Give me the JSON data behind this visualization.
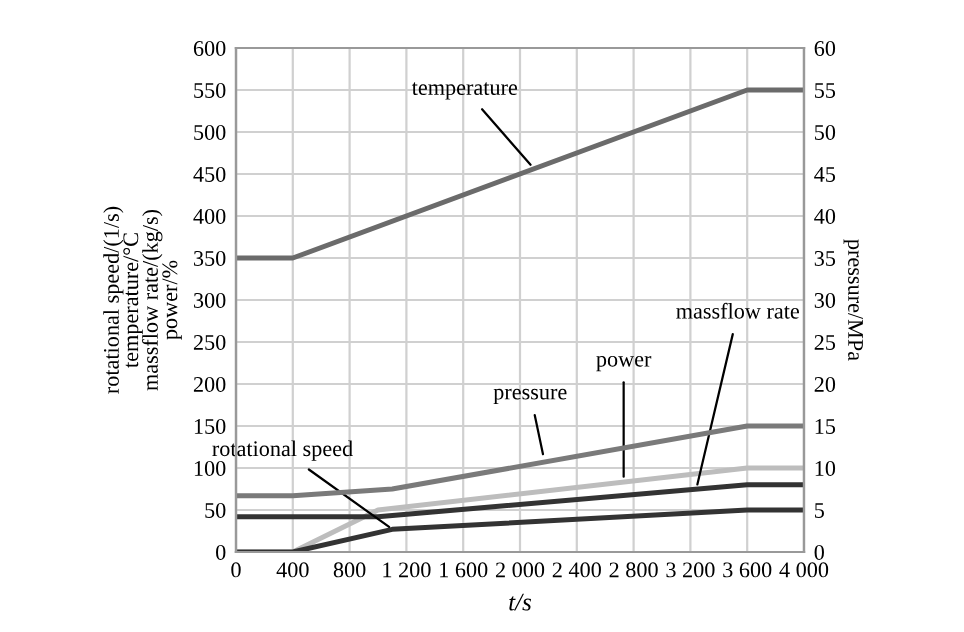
{
  "chart_data": {
    "type": "line",
    "xlabel": "t/s",
    "ylabel": "rotational speed/(1/s)\ntemperature/°C\nmassflow rate/(kg/s)\npower/%",
    "y2label": "pressure/MPa",
    "series": [
      {
        "color": "#6b6b6b",
        "x": [
          0,
          400,
          3600,
          4000
        ],
        "values": [
          350,
          350,
          550,
          550
        ]
      },
      {
        "color": "#7a7a7a",
        "axis": "y2",
        "x": [
          0,
          400,
          1100,
          3600,
          4000
        ],
        "values": [
          6.7,
          6.7,
          7.5,
          15,
          15
        ]
      },
      {
        "color": "#bdbdbd",
        "x": [
          0,
          400,
          1000,
          3600,
          4000
        ],
        "values": [
          0,
          0,
          50,
          100,
          100
        ]
      },
      {
        "color": "#333333",
        "x": [
          0,
          1000,
          3600,
          4000
        ],
        "values": [
          42,
          42,
          80,
          80
        ]
      },
      {
        "color": "#333333",
        "x": [
          0,
          400,
          1100,
          3600,
          4000
        ],
        "values": [
          0,
          0,
          27,
          50,
          50
        ]
      }
    ],
    "annotations": [
      {
        "text": "temperature",
        "x": 2100,
        "y": 456
      },
      {
        "text": "pressure",
        "x": 2170,
        "y": 110
      },
      {
        "text": "power",
        "x": 2730,
        "y": 83
      },
      {
        "text": "massflow rate",
        "x": 3240,
        "y": 74
      },
      {
        "text": "rotational speed",
        "x": 1110,
        "y": 26
      }
    ],
    "xlim": [
      0,
      4000
    ],
    "xticks": [
      0,
      400,
      800,
      {
        "value": 1200,
        "label": "1 200"
      },
      {
        "value": 1600,
        "label": "1 600"
      },
      {
        "value": 2000,
        "label": "2 000"
      },
      {
        "value": 2400,
        "label": "2 400"
      },
      {
        "value": 2800,
        "label": "2 800"
      },
      {
        "value": 3200,
        "label": "3 200"
      },
      {
        "value": 3600,
        "label": "3 600"
      },
      {
        "value": 4000,
        "label": "4 000"
      }
    ],
    "ylim": [
      0,
      600
    ],
    "yticks": [
      0,
      50,
      100,
      150,
      200,
      250,
      300,
      350,
      400,
      450,
      500,
      550,
      600
    ],
    "y2lim": [
      0,
      60
    ],
    "y2ticks": [
      0,
      5,
      10,
      15,
      20,
      25,
      30,
      35,
      40,
      45,
      50,
      55,
      60
    ],
    "grid": true,
    "line_style": "solid"
  }
}
